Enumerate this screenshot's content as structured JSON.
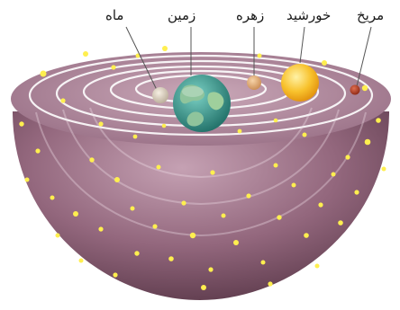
{
  "labels": {
    "moon": "ماه",
    "earth": "زمین",
    "venus": "زهره",
    "sun": "خورشید",
    "mars": "مریخ"
  },
  "colors": {
    "bowl": "#8a5d72",
    "bowl_inner": "#b38ba0",
    "rings": "#ffffff",
    "stars": "#ffe94a",
    "sun": "#f6b51d",
    "earth": "#3f9e8d",
    "mars": "#b23a1e",
    "venus": "#e6b07a",
    "moon": "#ddd3c4"
  }
}
